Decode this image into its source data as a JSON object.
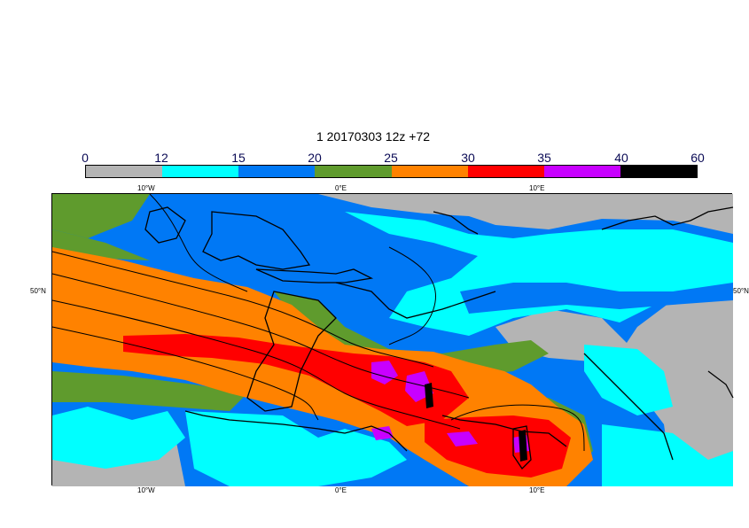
{
  "title": "1 20170303 12z +72",
  "legend": {
    "labels": [
      "0",
      "12",
      "15",
      "20",
      "25",
      "30",
      "35",
      "40",
      "60"
    ],
    "colors": [
      "#b4b4b4",
      "#00ffff",
      "#0078f5",
      "#5f9b2d",
      "#ff8200",
      "#ff0000",
      "#c800ff",
      "#000000"
    ]
  },
  "axes": {
    "top_lon": [
      "10°W",
      "0°E",
      "10°E"
    ],
    "bottom_lon": [
      "10°W",
      "0°E",
      "10°E"
    ],
    "lat_left": "50°N",
    "lat_right": "50°N"
  }
}
